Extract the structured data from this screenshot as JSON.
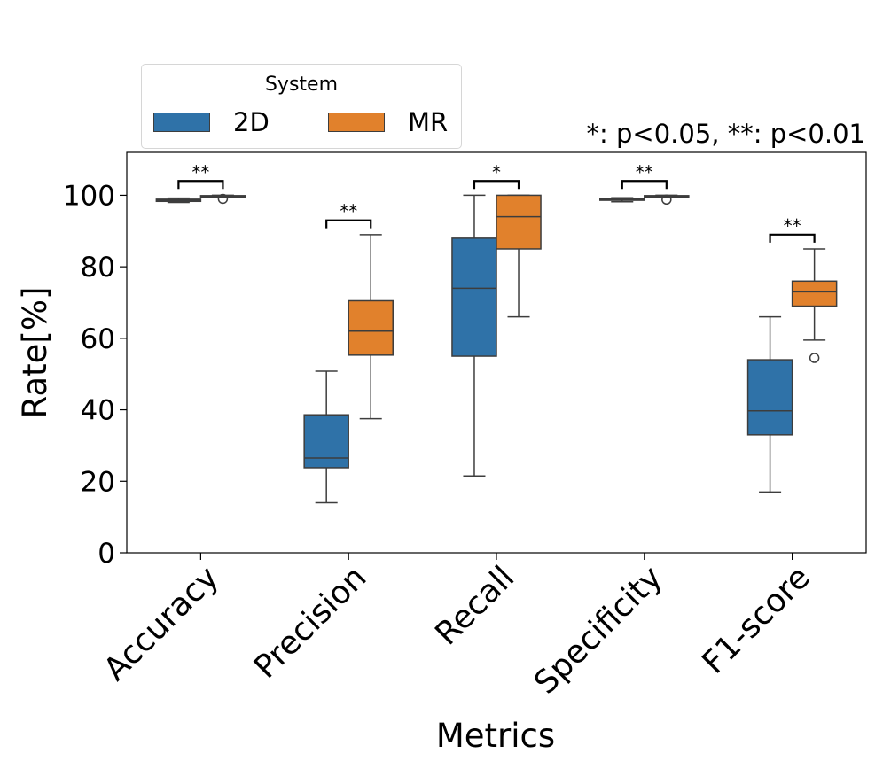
{
  "chart_data": {
    "type": "box",
    "title": "",
    "xlabel": "Metrics",
    "ylabel": "Rate[%]",
    "ylim": [
      0,
      112
    ],
    "yticks": [
      0,
      20,
      40,
      60,
      80,
      100
    ],
    "categories": [
      "Accuracy",
      "Precision",
      "Recall",
      "Specificity",
      "F1-score"
    ],
    "legend": {
      "title": "System",
      "placement": "top-left, above plot"
    },
    "annotation": "*: p<0.05, **: p<0.01",
    "series": [
      {
        "name": "2D",
        "color": "#2f72a8",
        "boxes": [
          {
            "whislo": 98.0,
            "q1": 98.3,
            "med": 98.6,
            "q3": 98.9,
            "whishi": 99.2,
            "fliers": []
          },
          {
            "whislo": 14.0,
            "q1": 23.8,
            "med": 26.5,
            "q3": 38.6,
            "whishi": 50.8,
            "fliers": []
          },
          {
            "whislo": 21.5,
            "q1": 55.0,
            "med": 74.0,
            "q3": 88.0,
            "whishi": 100.0,
            "fliers": []
          },
          {
            "whislo": 98.2,
            "q1": 98.6,
            "med": 98.9,
            "q3": 99.1,
            "whishi": 99.3,
            "fliers": []
          },
          {
            "whislo": 17.0,
            "q1": 33.0,
            "med": 39.7,
            "q3": 54.0,
            "whishi": 66.0,
            "fliers": []
          }
        ]
      },
      {
        "name": "MR",
        "color": "#e1812c",
        "boxes": [
          {
            "whislo": 99.4,
            "q1": 99.5,
            "med": 99.7,
            "q3": 99.9,
            "whishi": 100.0,
            "fliers": [
              99.0
            ]
          },
          {
            "whislo": 37.5,
            "q1": 55.3,
            "med": 62.0,
            "q3": 70.5,
            "whishi": 89.0,
            "fliers": []
          },
          {
            "whislo": 66.0,
            "q1": 85.0,
            "med": 94.0,
            "q3": 100.0,
            "whishi": 100.0,
            "fliers": []
          },
          {
            "whislo": 99.3,
            "q1": 99.5,
            "med": 99.7,
            "q3": 99.9,
            "whishi": 100.0,
            "fliers": [
              98.8
            ]
          },
          {
            "whislo": 59.5,
            "q1": 69.0,
            "med": 73.0,
            "q3": 76.0,
            "whishi": 85.0,
            "fliers": [
              54.5
            ]
          }
        ]
      }
    ],
    "significance": [
      {
        "category": "Accuracy",
        "label": "**",
        "y": 104
      },
      {
        "category": "Precision",
        "label": "**",
        "y": 93
      },
      {
        "category": "Recall",
        "label": "*",
        "y": 104
      },
      {
        "category": "Specificity",
        "label": "**",
        "y": 104
      },
      {
        "category": "F1-score",
        "label": "**",
        "y": 89
      }
    ]
  }
}
